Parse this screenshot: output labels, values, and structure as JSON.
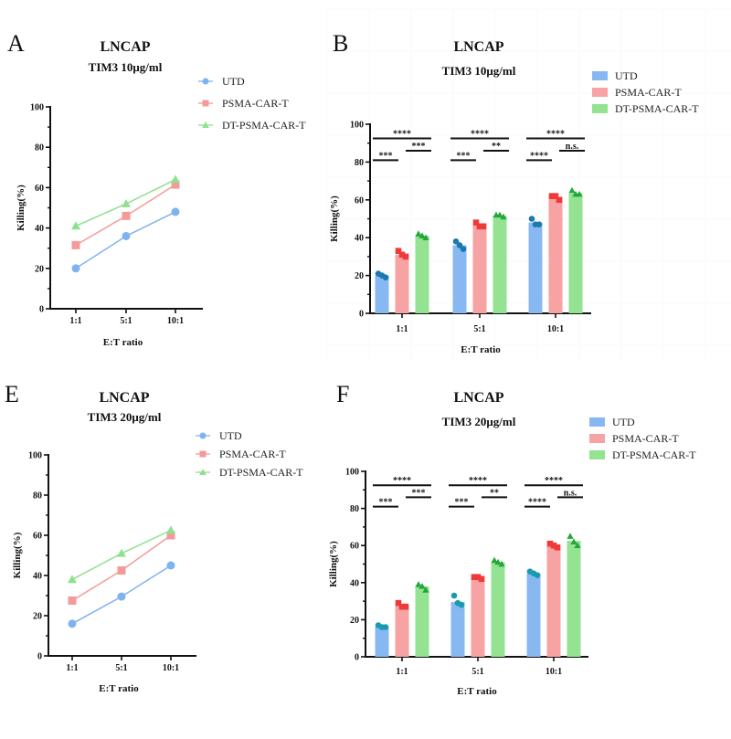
{
  "chart_data": [
    {
      "panel": "A",
      "type": "line",
      "title": "LNCAP",
      "subtitle": "TIM3 10μg/ml",
      "xlabel": "E:T ratio",
      "ylabel": "Killing(%)",
      "categories": [
        "1:1",
        "5:1",
        "10:1"
      ],
      "ylim": [
        0,
        100
      ],
      "yticks": [
        0,
        20,
        40,
        60,
        80,
        100
      ],
      "legend_position": "top-right",
      "series": [
        {
          "name": "UTD",
          "marker": "circle",
          "color": "#7fb2f0",
          "values": [
            20,
            36,
            48
          ]
        },
        {
          "name": "PSMA-CAR-T",
          "marker": "square",
          "color": "#f59a9a",
          "values": [
            31.5,
            46,
            61.5
          ]
        },
        {
          "name": "DT-PSMA-CAR-T",
          "marker": "triangle",
          "color": "#8fe08f",
          "values": [
            41,
            52,
            64
          ]
        }
      ]
    },
    {
      "panel": "B",
      "type": "bar",
      "title": "LNCAP",
      "subtitle": "TIM3 10μg/ml",
      "xlabel": "E:T ratio",
      "ylabel": "Killing(%)",
      "categories": [
        "1:1",
        "5:1",
        "10:1"
      ],
      "ylim": [
        0,
        100
      ],
      "yticks": [
        0,
        20,
        40,
        60,
        80,
        100
      ],
      "legend_position": "top-right",
      "series": [
        {
          "name": "UTD",
          "color": "#88b8f2",
          "point_color": "#1a7ab0",
          "marker": "circle",
          "values": [
            20,
            36,
            48
          ],
          "points": [
            [
              21,
              20,
              19
            ],
            [
              38,
              36,
              34
            ],
            [
              50,
              47,
              47
            ]
          ]
        },
        {
          "name": "PSMA-CAR-T",
          "color": "#f7a3a3",
          "point_color": "#ee3a3a",
          "marker": "square",
          "values": [
            31,
            46.5,
            61.5
          ],
          "points": [
            [
              33,
              31,
              30
            ],
            [
              48,
              46,
              46
            ],
            [
              62,
              62,
              60
            ]
          ]
        },
        {
          "name": "DT-PSMA-CAR-T",
          "color": "#93e393",
          "point_color": "#22a83a",
          "marker": "triangle",
          "values": [
            41,
            51.5,
            63.5
          ],
          "points": [
            [
              42,
              41,
              40
            ],
            [
              52,
              52,
              51
            ],
            [
              65,
              63,
              63
            ]
          ]
        }
      ],
      "significance": [
        [
          {
            "pair": "UTD vs DT-PSMA-CAR-T",
            "label": "****"
          },
          {
            "pair": "UTD vs PSMA-CAR-T",
            "label": "***"
          },
          {
            "pair": "PSMA-CAR-T vs DT-PSMA-CAR-T",
            "label": "***"
          }
        ],
        [
          {
            "pair": "UTD vs DT-PSMA-CAR-T",
            "label": "****"
          },
          {
            "pair": "UTD vs PSMA-CAR-T",
            "label": "***"
          },
          {
            "pair": "PSMA-CAR-T vs DT-PSMA-CAR-T",
            "label": "**"
          }
        ],
        [
          {
            "pair": "UTD vs DT-PSMA-CAR-T",
            "label": "****"
          },
          {
            "pair": "UTD vs PSMA-CAR-T",
            "label": "****"
          },
          {
            "pair": "PSMA-CAR-T vs DT-PSMA-CAR-T",
            "label": "n.s."
          }
        ]
      ]
    },
    {
      "panel": "E",
      "type": "line",
      "title": "LNCAP",
      "subtitle": "TIM3 20μg/ml",
      "xlabel": "E:T ratio",
      "ylabel": "Killing(%)",
      "categories": [
        "1:1",
        "5:1",
        "10:1"
      ],
      "ylim": [
        0,
        100
      ],
      "yticks": [
        0,
        20,
        40,
        60,
        80,
        100
      ],
      "legend_position": "top-right",
      "series": [
        {
          "name": "UTD",
          "marker": "circle",
          "color": "#7fb2f0",
          "values": [
            16,
            29.5,
            45
          ]
        },
        {
          "name": "PSMA-CAR-T",
          "marker": "square",
          "color": "#f59a9a",
          "values": [
            27.5,
            42.5,
            60
          ]
        },
        {
          "name": "DT-PSMA-CAR-T",
          "marker": "triangle",
          "color": "#8fe08f",
          "values": [
            38,
            51,
            62.5
          ]
        }
      ]
    },
    {
      "panel": "F",
      "type": "bar",
      "title": "LNCAP",
      "subtitle": "TIM3 20μg/ml",
      "xlabel": "E:T ratio",
      "ylabel": "Killing(%)",
      "categories": [
        "1:1",
        "5:1",
        "10:1"
      ],
      "ylim": [
        0,
        100
      ],
      "yticks": [
        0,
        20,
        40,
        60,
        80,
        100
      ],
      "legend_position": "top-right",
      "series": [
        {
          "name": "UTD",
          "color": "#88b8f2",
          "point_color": "#1a9ab0",
          "marker": "circle",
          "values": [
            16,
            29.5,
            45
          ],
          "points": [
            [
              17,
              16,
              16
            ],
            [
              33,
              29,
              28
            ],
            [
              46,
              45,
              44
            ]
          ]
        },
        {
          "name": "PSMA-CAR-T",
          "color": "#f7a3a3",
          "point_color": "#ee3a3a",
          "marker": "square",
          "values": [
            27.5,
            42.5,
            60
          ],
          "points": [
            [
              29,
              27,
              27
            ],
            [
              43,
              43,
              42
            ],
            [
              61,
              60,
              59
            ]
          ]
        },
        {
          "name": "DT-PSMA-CAR-T",
          "color": "#93e393",
          "point_color": "#22a83a",
          "marker": "triangle",
          "values": [
            38,
            51,
            62.5
          ],
          "points": [
            [
              39,
              38,
              36
            ],
            [
              52,
              51,
              50
            ],
            [
              65,
              62,
              60
            ]
          ]
        }
      ],
      "significance": [
        [
          {
            "pair": "UTD vs DT-PSMA-CAR-T",
            "label": "****"
          },
          {
            "pair": "UTD vs PSMA-CAR-T",
            "label": "***"
          },
          {
            "pair": "PSMA-CAR-T vs DT-PSMA-CAR-T",
            "label": "***"
          }
        ],
        [
          {
            "pair": "UTD vs DT-PSMA-CAR-T",
            "label": "****"
          },
          {
            "pair": "UTD vs PSMA-CAR-T",
            "label": "***"
          },
          {
            "pair": "PSMA-CAR-T vs DT-PSMA-CAR-T",
            "label": "**"
          }
        ],
        [
          {
            "pair": "UTD vs DT-PSMA-CAR-T",
            "label": "****"
          },
          {
            "pair": "UTD vs PSMA-CAR-T",
            "label": "****"
          },
          {
            "pair": "PSMA-CAR-T vs DT-PSMA-CAR-T",
            "label": "n.s."
          }
        ]
      ]
    }
  ]
}
